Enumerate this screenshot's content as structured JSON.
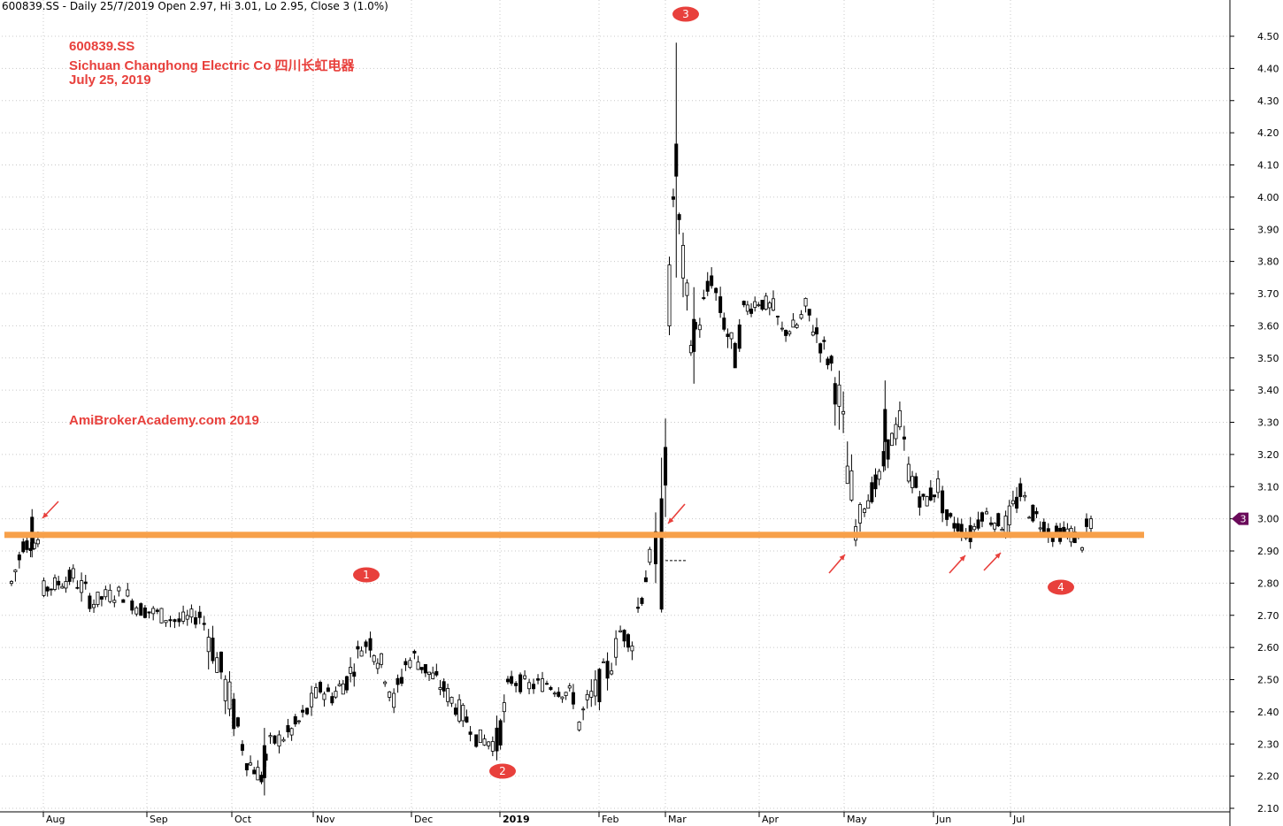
{
  "header": "600839.SS - Daily 25/7/2019 Open 2.97, Hi 3.01, Lo 2.95, Close 3 (1.0%)",
  "annotations": {
    "ticker": "600839.SS",
    "company": "Sichuan Changhong Electric Co  四川长虹电器",
    "date": "July 25, 2019",
    "watermark": "AmiBrokerAcademy.com   2019"
  },
  "markers": [
    "1",
    "2",
    "3",
    "4"
  ],
  "price_tag": "3",
  "colors": {
    "annotation": "#e8403c",
    "support_line": "#f7a04a",
    "candle": "#000000",
    "marker": "#e8403c",
    "price_tag": "#6a0a5a"
  },
  "chart_data": {
    "type": "candlestick",
    "x_axis_labels": [
      "Aug",
      "Sep",
      "Oct",
      "Nov",
      "Dec",
      "2019",
      "Feb",
      "Mar",
      "Apr",
      "May",
      "Jun",
      "Jul"
    ],
    "y_ticks": [
      "2.10",
      "2.20",
      "2.30",
      "2.40",
      "2.50",
      "2.60",
      "2.70",
      "2.80",
      "2.90",
      "3.00",
      "3.10",
      "3.20",
      "3.30",
      "3.40",
      "3.50",
      "3.60",
      "3.70",
      "3.80",
      "3.90",
      "4.00",
      "4.10",
      "4.20",
      "4.30",
      "4.40",
      "4.50"
    ],
    "ylim": [
      2.1,
      4.55
    ],
    "support_level": 2.95,
    "last_close": 3.0,
    "series_description": "Daily OHLC candles, Jul 2018 - Jul 2019",
    "close_path": [
      [
        "2018-07-23",
        2.8
      ],
      [
        "2018-07-27",
        2.92
      ],
      [
        "2018-08-01",
        2.93
      ],
      [
        "2018-08-03",
        2.78
      ],
      [
        "2018-08-08",
        2.8
      ],
      [
        "2018-08-13",
        2.82
      ],
      [
        "2018-08-20",
        2.74
      ],
      [
        "2018-08-24",
        2.76
      ],
      [
        "2018-08-30",
        2.77
      ],
      [
        "2018-09-05",
        2.72
      ],
      [
        "2018-09-12",
        2.7
      ],
      [
        "2018-09-18",
        2.68
      ],
      [
        "2018-09-25",
        2.7
      ],
      [
        "2018-09-28",
        2.65
      ],
      [
        "2018-10-08",
        2.35
      ],
      [
        "2018-10-11",
        2.25
      ],
      [
        "2018-10-16",
        2.2
      ],
      [
        "2018-10-19",
        2.3
      ],
      [
        "2018-10-25",
        2.33
      ],
      [
        "2018-10-30",
        2.38
      ],
      [
        "2018-11-05",
        2.47
      ],
      [
        "2018-11-09",
        2.45
      ],
      [
        "2018-11-14",
        2.5
      ],
      [
        "2018-11-19",
        2.6
      ],
      [
        "2018-11-22",
        2.62
      ],
      [
        "2018-11-27",
        2.52
      ],
      [
        "2018-11-30",
        2.43
      ],
      [
        "2018-12-04",
        2.55
      ],
      [
        "2018-12-07",
        2.57
      ],
      [
        "2018-12-12",
        2.52
      ],
      [
        "2018-12-17",
        2.47
      ],
      [
        "2018-12-21",
        2.42
      ],
      [
        "2018-12-26",
        2.36
      ],
      [
        "2018-12-28",
        2.32
      ],
      [
        "2019-01-04",
        2.3
      ],
      [
        "2019-01-09",
        2.5
      ],
      [
        "2019-01-15",
        2.48
      ],
      [
        "2019-01-21",
        2.49
      ],
      [
        "2019-01-25",
        2.47
      ],
      [
        "2019-01-30",
        2.45
      ],
      [
        "2019-02-01",
        2.37
      ],
      [
        "2019-02-12",
        2.55
      ],
      [
        "2019-02-15",
        2.65
      ],
      [
        "2019-02-19",
        2.62
      ],
      [
        "2019-02-21",
        2.72
      ],
      [
        "2019-02-25",
        2.88
      ],
      [
        "2019-02-27",
        2.9
      ],
      [
        "2019-03-01",
        2.88
      ],
      [
        "2019-03-05",
        4.0
      ],
      [
        "2019-03-07",
        3.9
      ],
      [
        "2019-03-11",
        3.55
      ],
      [
        "2019-03-14",
        3.62
      ],
      [
        "2019-03-18",
        3.75
      ],
      [
        "2019-03-21",
        3.65
      ],
      [
        "2019-03-26",
        3.5
      ],
      [
        "2019-03-29",
        3.65
      ],
      [
        "2019-04-03",
        3.68
      ],
      [
        "2019-04-08",
        3.65
      ],
      [
        "2019-04-11",
        3.58
      ],
      [
        "2019-04-16",
        3.6
      ],
      [
        "2019-04-19",
        3.65
      ],
      [
        "2019-04-24",
        3.55
      ],
      [
        "2019-04-29",
        3.45
      ],
      [
        "2019-05-06",
        2.97
      ],
      [
        "2019-05-09",
        3.05
      ],
      [
        "2019-05-14",
        3.12
      ],
      [
        "2019-05-17",
        3.22
      ],
      [
        "2019-05-21",
        3.3
      ],
      [
        "2019-05-24",
        3.15
      ],
      [
        "2019-05-29",
        3.05
      ],
      [
        "2019-06-03",
        3.1
      ],
      [
        "2019-06-06",
        3.0
      ],
      [
        "2019-06-11",
        2.97
      ],
      [
        "2019-06-14",
        2.95
      ],
      [
        "2019-06-18",
        3.02
      ],
      [
        "2019-06-21",
        3.0
      ],
      [
        "2019-06-26",
        2.98
      ],
      [
        "2019-07-01",
        3.08
      ],
      [
        "2019-07-04",
        3.03
      ],
      [
        "2019-07-09",
        2.98
      ],
      [
        "2019-07-12",
        2.95
      ],
      [
        "2019-07-17",
        2.96
      ],
      [
        "2019-07-22",
        2.93
      ],
      [
        "2019-07-25",
        3.0
      ]
    ]
  }
}
